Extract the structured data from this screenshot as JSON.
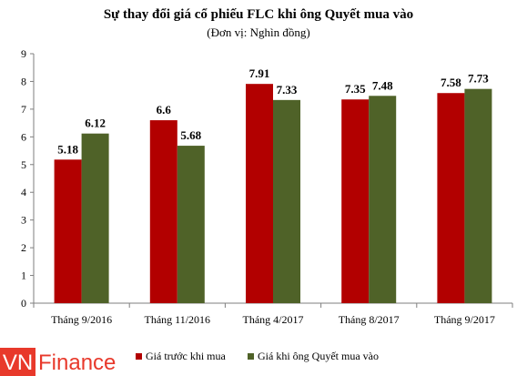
{
  "chart_data": {
    "type": "bar",
    "title": "Sự thay đổi giá cổ phiếu FLC khi ông Quyết mua vào",
    "subtitle": "(Đơn vị: Nghìn đồng)",
    "categories": [
      "Tháng 9/2016",
      "Tháng 11/2016",
      "Tháng 4/2017",
      "Tháng 8/2017",
      "Tháng 9/2017"
    ],
    "series": [
      {
        "name": "Giá trước khi mua",
        "color": "#b20000",
        "values": [
          5.18,
          6.6,
          7.91,
          7.35,
          7.58
        ],
        "labels": [
          "5.18",
          "6.6",
          "7.91",
          "7.35",
          "7.58"
        ]
      },
      {
        "name": "Giá khi ông Quyết mua vào",
        "color": "#4f6228",
        "values": [
          6.12,
          5.68,
          7.33,
          7.48,
          7.73
        ],
        "labels": [
          "6.12",
          "5.68",
          "7.33",
          "7.48",
          "7.73"
        ]
      }
    ],
    "ylim": [
      0,
      9
    ],
    "yticks": [
      "0",
      "1",
      "2",
      "3",
      "4",
      "5",
      "6",
      "7",
      "8",
      "9"
    ],
    "grid": false,
    "legend_position": "bottom"
  },
  "watermark": {
    "text_vn": "VN",
    "text_finance": "Finance",
    "color": "#e8392b"
  }
}
